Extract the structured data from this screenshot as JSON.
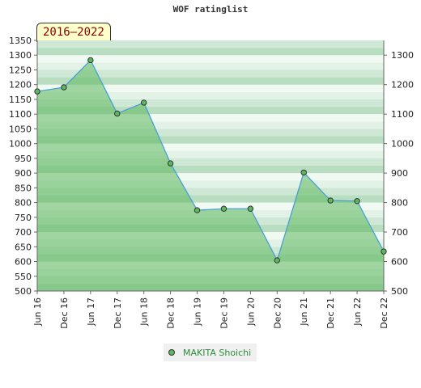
{
  "chart_data": {
    "type": "area",
    "title": "WOF ratinglist",
    "period_label": "2016–2022",
    "categories": [
      "Jun 16",
      "Dec 16",
      "Jun 17",
      "Dec 17",
      "Jun 18",
      "Dec 18",
      "Jun 19",
      "Dec 19",
      "Jun 20",
      "Dec 20",
      "Jun 21",
      "Dec 21",
      "Jun 22",
      "Dec 22"
    ],
    "series": [
      {
        "name": "MAKITA Shoichi",
        "values": [
          1177,
          1191,
          1283,
          1102,
          1139,
          933,
          774,
          779,
          779,
          604,
          902,
          807,
          805,
          634
        ]
      }
    ],
    "y_left": {
      "min": 500,
      "max": 1350,
      "step": 50
    },
    "y_right": {
      "min": 500,
      "max": 1300,
      "step": 100
    },
    "legend_position": "bottom-center",
    "colors": {
      "line": "#4a9fd6",
      "fill": "#5cb85c",
      "marker": "#5cb85c",
      "band_dark": "#b5dcbf",
      "band_light": "#e9f5ec"
    }
  }
}
